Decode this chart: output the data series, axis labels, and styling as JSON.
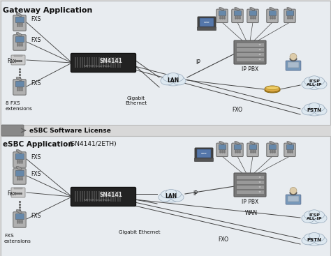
{
  "bg_color": "#d8d8d8",
  "panel_top_color": "#e8ecf0",
  "panel_bottom_color": "#e8ecf0",
  "title1": "Gateway Application",
  "title2": "eSBC Software License",
  "title3": "eSBC Application",
  "title3b": "(SN4141/2ETH)",
  "line_color": "#444444",
  "sn_box_color": "#2a2a2a",
  "sn_box_stripe": "#1a1a1a",
  "cloud_color": "#dde8f0",
  "cloud_edge": "#99aabb",
  "text_dark": "#111111",
  "sep_arrow_color": "#999999",
  "sep_box_color": "#888888",
  "server_color": "#888888",
  "phone_body": "#aaaaaa",
  "phone_screen": "#557799"
}
